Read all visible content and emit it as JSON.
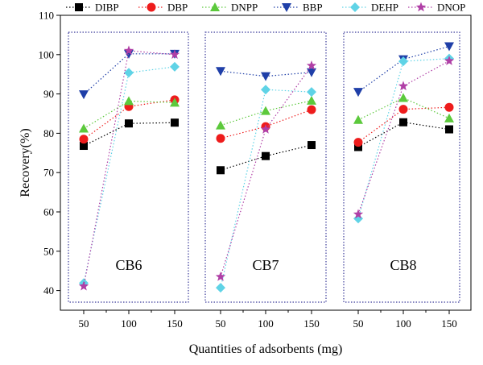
{
  "chart_data": {
    "type": "line",
    "title": "",
    "xlabel": "Quantities of adsorbents (mg)",
    "ylabel": "Recovery(%)",
    "ylim": [
      35,
      110
    ],
    "yticks": [
      40,
      50,
      60,
      70,
      80,
      90,
      100,
      110
    ],
    "grid": false,
    "legend_position": "top",
    "panels": [
      {
        "label": "CB6",
        "x_labels": [
          "50",
          "100",
          "150"
        ],
        "series": [
          {
            "name": "DIBP",
            "values": [
              76.8,
              82.5,
              82.7
            ]
          },
          {
            "name": "DBP",
            "values": [
              78.5,
              86.8,
              88.5
            ]
          },
          {
            "name": "DNPP",
            "values": [
              81.2,
              88.2,
              87.8
            ]
          },
          {
            "name": "BBP",
            "values": [
              89.9,
              100.2,
              100.2
            ]
          },
          {
            "name": "DEHP",
            "values": [
              41.9,
              95.4,
              96.9
            ]
          },
          {
            "name": "DNOP",
            "values": [
              41.1,
              101.0,
              100.0
            ]
          }
        ]
      },
      {
        "label": "CB7",
        "x_labels": [
          "50",
          "100",
          "150"
        ],
        "series": [
          {
            "name": "DIBP",
            "values": [
              70.6,
              74.2,
              77.0
            ]
          },
          {
            "name": "DBP",
            "values": [
              78.7,
              81.7,
              86.0
            ]
          },
          {
            "name": "DNPP",
            "values": [
              82.0,
              85.7,
              88.3
            ]
          },
          {
            "name": "BBP",
            "values": [
              95.8,
              94.5,
              95.5
            ]
          },
          {
            "name": "DEHP",
            "values": [
              40.7,
              91.1,
              90.5
            ]
          },
          {
            "name": "DNOP",
            "values": [
              43.5,
              81.0,
              97.2
            ]
          }
        ]
      },
      {
        "label": "CB8",
        "x_labels": [
          "50",
          "100",
          "150"
        ],
        "series": [
          {
            "name": "DIBP",
            "values": [
              76.5,
              82.8,
              81.0
            ]
          },
          {
            "name": "DBP",
            "values": [
              77.7,
              86.1,
              86.6
            ]
          },
          {
            "name": "DNPP",
            "values": [
              83.4,
              89.0,
              83.8
            ]
          },
          {
            "name": "BBP",
            "values": [
              90.5,
              98.8,
              102.1
            ]
          },
          {
            "name": "DEHP",
            "values": [
              58.3,
              98.3,
              99.0
            ]
          },
          {
            "name": "DNOP",
            "values": [
              59.4,
              92.0,
              98.4
            ]
          }
        ]
      }
    ],
    "series_styles": [
      {
        "name": "DIBP",
        "color": "#000000",
        "marker": "square"
      },
      {
        "name": "DBP",
        "color": "#ee1c1c",
        "marker": "circle"
      },
      {
        "name": "DNPP",
        "color": "#5cc93c",
        "marker": "triangle-up"
      },
      {
        "name": "BBP",
        "color": "#1f3fa8",
        "marker": "triangle-down"
      },
      {
        "name": "DEHP",
        "color": "#5fd3e6",
        "marker": "diamond"
      },
      {
        "name": "DNOP",
        "color": "#b03fa6",
        "marker": "star"
      }
    ],
    "panel_border_color": "#3b3b9a"
  }
}
